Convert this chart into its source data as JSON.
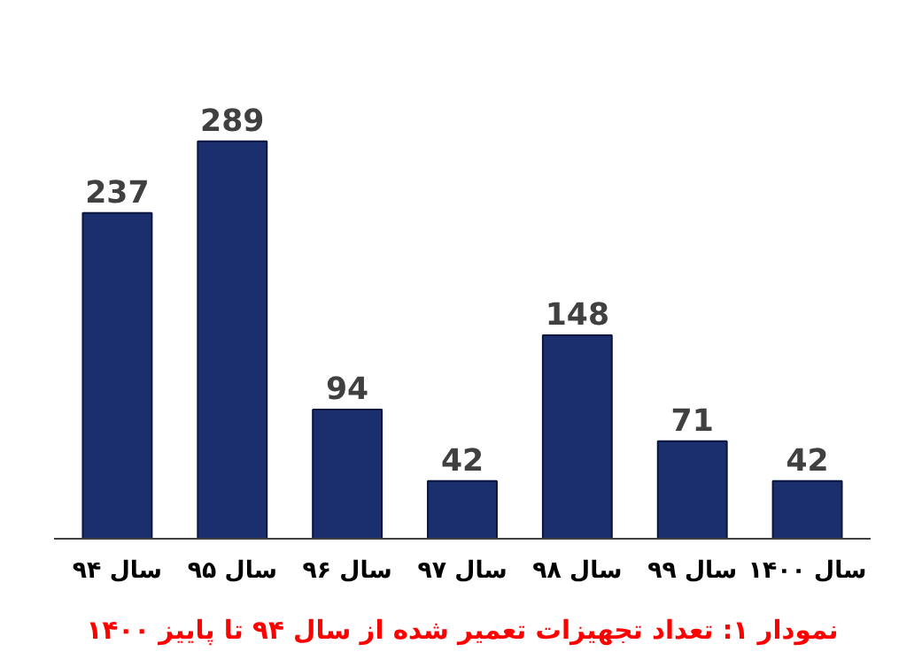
{
  "chart_data": {
    "type": "bar",
    "categories": [
      "سال ۹۴",
      "سال ۹۵",
      "سال ۹۶",
      "سال ۹۷",
      "سال ۹۸",
      "سال ۹۹",
      "سال ۱۴۰۰"
    ],
    "values": [
      237,
      289,
      94,
      42,
      148,
      71,
      42
    ],
    "color": "#1b2f6e",
    "data_labels": true,
    "tick_labels": "x",
    "annotations": [
      "نمودار ۱: تعداد تجهیزات تعمیر شده از سال ۹۴ تا پاییز ۱۴۰۰"
    ]
  }
}
